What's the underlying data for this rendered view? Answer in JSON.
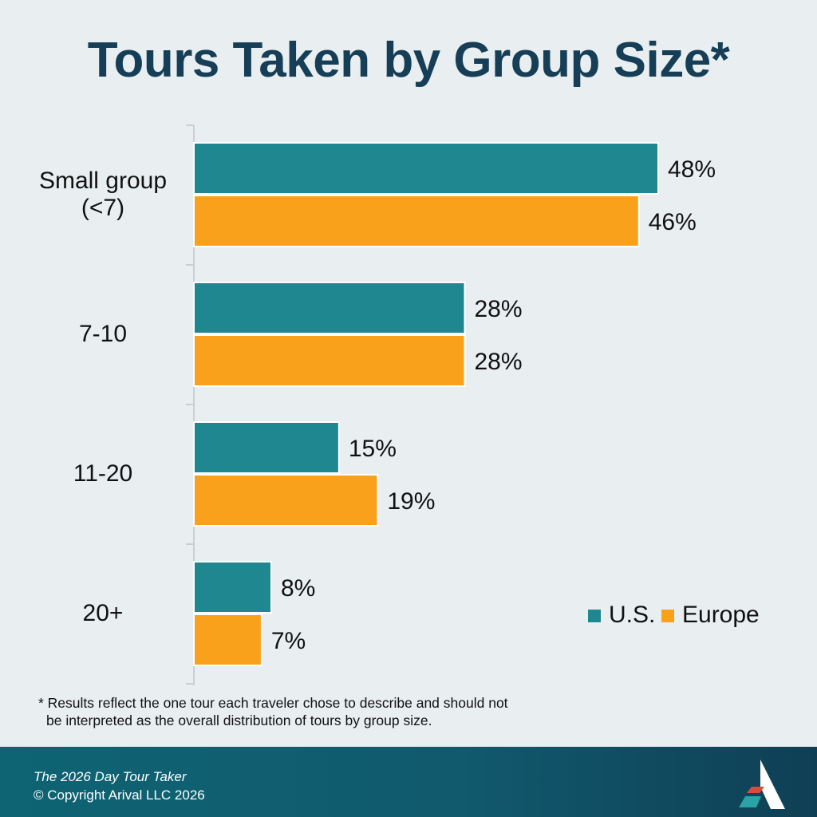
{
  "title": "Tours Taken by Group Size*",
  "footnote": {
    "line1": "* Results reflect the one tour each traveler chose to describe and should not",
    "line2": "be interpreted as the overall distribution of tours by group size."
  },
  "footer": {
    "publication": "The 2026  Day Tour Taker",
    "copyright": "© Copyright Arival LLC 2026",
    "logo_icon": "arival-logo-icon"
  },
  "colors": {
    "title": "#163f57",
    "us": "#1f8790",
    "europe": "#f9a11b",
    "background": "#e9eef1"
  },
  "chart_data": {
    "type": "bar",
    "orientation": "horizontal",
    "categories": [
      [
        "Small group",
        "(<7)"
      ],
      [
        "7-10"
      ],
      [
        "11-20"
      ],
      [
        "20+"
      ]
    ],
    "series": [
      {
        "name": "U.S.",
        "values": [
          48,
          28,
          15,
          8
        ],
        "labels": [
          "48%",
          "28%",
          "15%",
          "8%"
        ],
        "color": "#1f8790"
      },
      {
        "name": "Europe",
        "values": [
          46,
          28,
          19,
          7
        ],
        "labels": [
          "46%",
          "28%",
          "19%",
          "7%"
        ],
        "color": "#f9a11b"
      }
    ],
    "unit": "%",
    "xlim": [
      0,
      50
    ],
    "legend": "bottom-right",
    "grid": false
  }
}
